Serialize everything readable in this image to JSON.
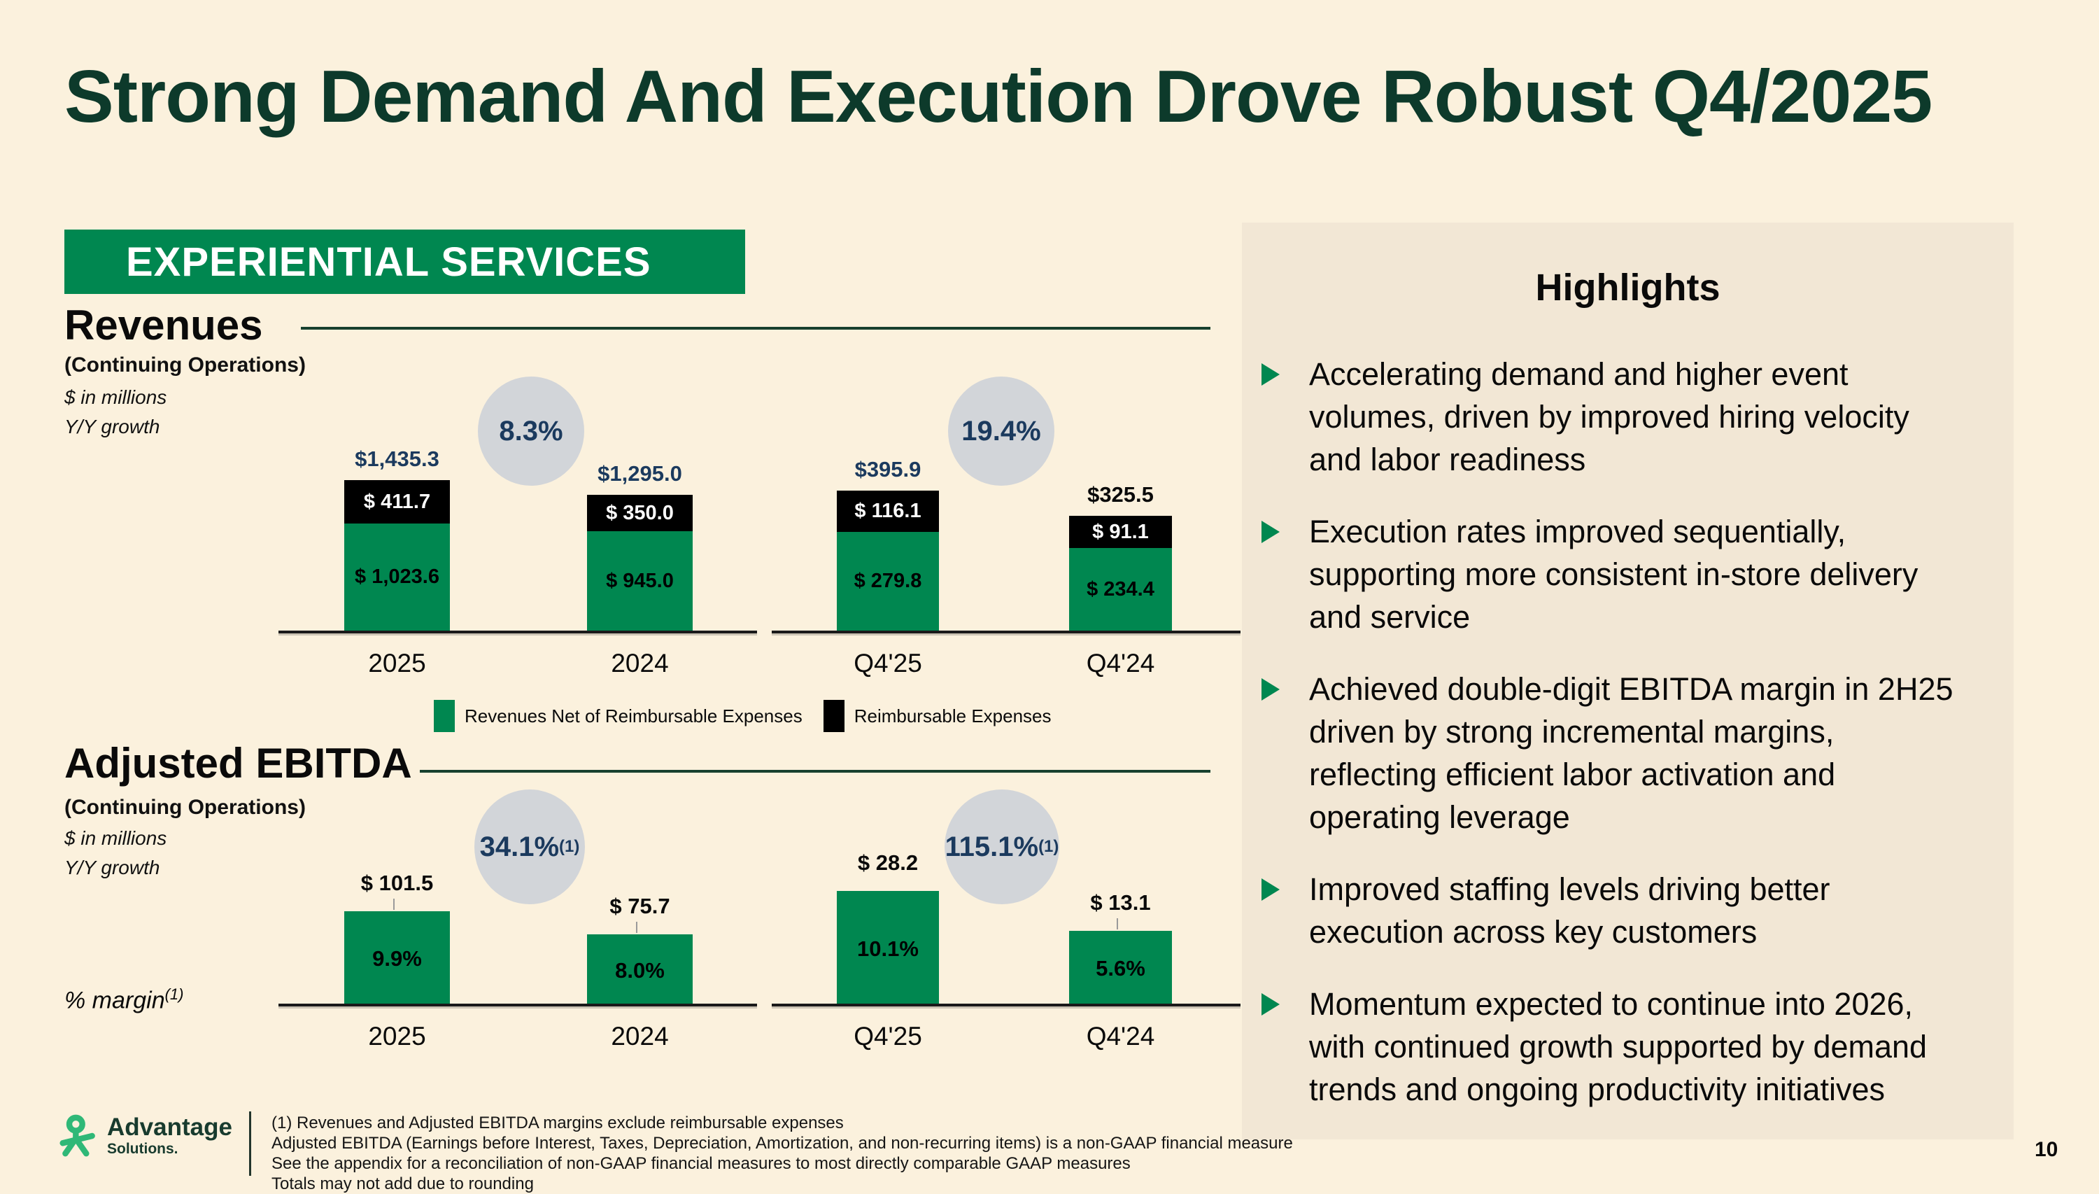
{
  "slide": {
    "title": "Strong Demand And Execution Drove Robust Q4/2025",
    "page_number": "10"
  },
  "section_banner": {
    "label": "EXPERIENTIAL SERVICES"
  },
  "highlights": {
    "title": "Highlights",
    "bullets": [
      "Accelerating demand and higher event volumes, driven by improved hiring velocity and labor readiness",
      "Execution rates improved sequentially, supporting more consistent in-store delivery and service",
      "Achieved double-digit EBITDA margin in 2H25 driven by strong incremental margins, reflecting efficient labor activation and operating leverage",
      "Improved staffing levels driving better execution across key customers",
      "Momentum expected to continue into 2026, with continued growth supported by demand trends and ongoing productivity initiatives"
    ]
  },
  "footnotes": [
    "(1) Revenues and Adjusted EBITDA margins exclude reimbursable expenses",
    "Adjusted EBITDA (Earnings before Interest, Taxes, Depreciation, Amortization, and non-recurring items) is a non-GAAP financial measure",
    "See the appendix for a reconciliation of non-GAAP financial measures to most directly comparable GAAP measures",
    "Totals may not add due to rounding"
  ],
  "logo": {
    "brand": "Advantage",
    "sub": "Solutions."
  },
  "colors": {
    "background": "#FBF1DD",
    "panel": "#F2E7D5",
    "green": "#008750",
    "dark_green": "#0D3A2B",
    "navy": "#1B3A5E",
    "circle_gray": "#D2D5D9",
    "bar_black": "#000000",
    "logo_green": "#2FB877"
  },
  "chart_data": [
    {
      "id": "revenues",
      "type": "bar",
      "stacked": true,
      "title": "Revenues",
      "subtitle": "(Continuing Operations)",
      "units_note": "$ in millions",
      "growth_note": "Y/Y growth",
      "categories": [
        "2025",
        "2024",
        "Q4'25",
        "Q4'24"
      ],
      "series": [
        {
          "name": "Revenues Net of Reimbursable Expenses",
          "color": "green",
          "values": [
            1023.6,
            945.0,
            279.8,
            234.4
          ],
          "labels": [
            "$ 1,023.6",
            "$ 945.0",
            "$ 279.8",
            "$ 234.4"
          ]
        },
        {
          "name": "Reimbursable Expenses",
          "color": "black",
          "values": [
            411.7,
            350.0,
            116.1,
            91.1
          ],
          "labels": [
            "$ 411.7",
            "$ 350.0",
            "$ 116.1",
            "$ 91.1"
          ]
        }
      ],
      "totals": [
        1435.3,
        1295.0,
        395.9,
        325.5
      ],
      "total_labels": [
        "$1,435.3",
        "$1,295.0",
        "$395.9",
        "$325.5"
      ],
      "total_label_colors": [
        "navy",
        "navy",
        "navy",
        "black"
      ],
      "growth_badges": [
        "8.3%",
        "19.4%"
      ],
      "growth_badge_sup": "",
      "legend_position": "bottom"
    },
    {
      "id": "adjusted-ebitda",
      "type": "bar",
      "stacked": false,
      "title": "Adjusted EBITDA",
      "subtitle": "(Continuing Operations)",
      "units_note": "$ in millions",
      "growth_note": "Y/Y growth",
      "margin_note": "% margin",
      "margin_note_sup": "(1)",
      "categories": [
        "2025",
        "2024",
        "Q4'25",
        "Q4'24"
      ],
      "values": [
        101.5,
        75.7,
        28.2,
        13.1
      ],
      "value_labels": [
        "$ 101.5",
        "$ 75.7",
        "$ 28.2",
        "$ 13.1"
      ],
      "margin_labels": [
        "9.9%",
        "8.0%",
        "10.1%",
        "5.6%"
      ],
      "growth_badges": [
        "34.1%",
        "115.1%"
      ],
      "growth_badge_sup": "(1)"
    }
  ]
}
